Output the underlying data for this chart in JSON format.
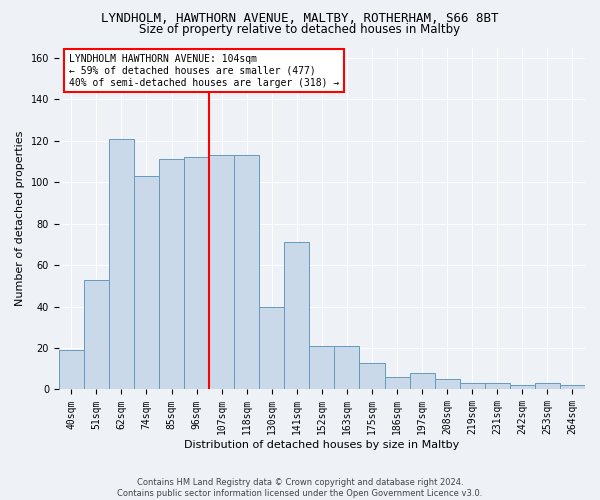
{
  "title": "LYNDHOLM, HAWTHORN AVENUE, MALTBY, ROTHERHAM, S66 8BT",
  "subtitle": "Size of property relative to detached houses in Maltby",
  "xlabel": "Distribution of detached houses by size in Maltby",
  "ylabel": "Number of detached properties",
  "bar_labels": [
    "40sqm",
    "51sqm",
    "62sqm",
    "74sqm",
    "85sqm",
    "96sqm",
    "107sqm",
    "118sqm",
    "130sqm",
    "141sqm",
    "152sqm",
    "163sqm",
    "175sqm",
    "186sqm",
    "197sqm",
    "208sqm",
    "219sqm",
    "231sqm",
    "242sqm",
    "253sqm",
    "264sqm"
  ],
  "bar_heights": [
    19,
    53,
    121,
    103,
    111,
    112,
    113,
    113,
    40,
    71,
    21,
    21,
    13,
    6,
    8,
    5,
    3,
    3,
    2,
    3,
    2
  ],
  "bar_color": "#c9d9ea",
  "bar_edge_color": "#6699bb",
  "vline_x_index": 6,
  "vline_color": "red",
  "annotation_text": "LYNDHOLM HAWTHORN AVENUE: 104sqm\n← 59% of detached houses are smaller (477)\n40% of semi-detached houses are larger (318) →",
  "annotation_box_color": "white",
  "annotation_box_edge": "red",
  "ylim": [
    0,
    165
  ],
  "yticks": [
    0,
    20,
    40,
    60,
    80,
    100,
    120,
    140,
    160
  ],
  "footer": "Contains HM Land Registry data © Crown copyright and database right 2024.\nContains public sector information licensed under the Open Government Licence v3.0.",
  "bg_color": "#eef2f7",
  "grid_color": "white",
  "title_fontsize": 9,
  "subtitle_fontsize": 8.5,
  "xlabel_fontsize": 8,
  "ylabel_fontsize": 8,
  "tick_fontsize": 7,
  "footer_fontsize": 6
}
